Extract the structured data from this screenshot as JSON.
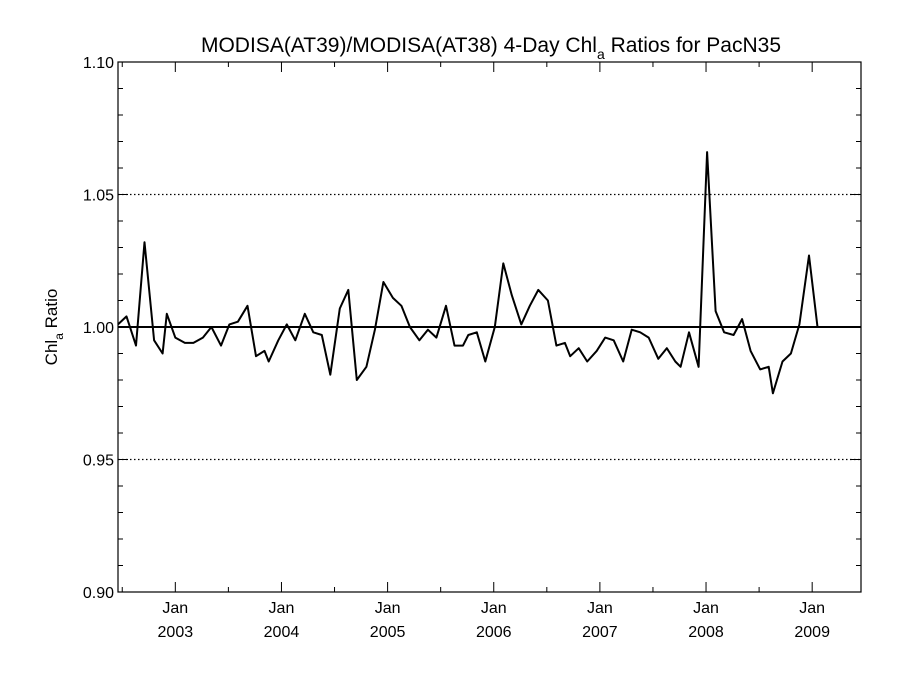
{
  "chart_data": {
    "type": "line",
    "title": "MODISA(AT39)/MODISA(AT38) 4-Day Chl",
    "title_sub": "a",
    "title_rest": " Ratios for PacN35",
    "ylabel_main": "Chl",
    "ylabel_sub": "a",
    "ylabel_rest": " Ratio",
    "ylim": [
      0.9,
      1.1
    ],
    "xlim": [
      2002.46,
      2009.46
    ],
    "y_ticks": [
      "0.90",
      "0.95",
      "1.00",
      "1.05",
      "1.10"
    ],
    "y_tick_values": [
      0.9,
      0.95,
      1.0,
      1.05,
      1.1
    ],
    "dotted_grid_values": [
      0.95,
      1.05
    ],
    "reference_line": 1.0,
    "x_ticks": [
      {
        "value": 2003.0,
        "month": "Jan",
        "year": "2003"
      },
      {
        "value": 2004.0,
        "month": "Jan",
        "year": "2004"
      },
      {
        "value": 2005.0,
        "month": "Jan",
        "year": "2005"
      },
      {
        "value": 2006.0,
        "month": "Jan",
        "year": "2006"
      },
      {
        "value": 2007.0,
        "month": "Jan",
        "year": "2007"
      },
      {
        "value": 2008.0,
        "month": "Jan",
        "year": "2008"
      },
      {
        "value": 2009.0,
        "month": "Jan",
        "year": "2009"
      }
    ],
    "series": [
      {
        "color": "#000000",
        "points": [
          [
            2002.46,
            1.001
          ],
          [
            2002.54,
            1.004
          ],
          [
            2002.63,
            0.993
          ],
          [
            2002.71,
            1.032
          ],
          [
            2002.8,
            0.995
          ],
          [
            2002.88,
            0.99
          ],
          [
            2002.92,
            1.005
          ],
          [
            2003.0,
            0.996
          ],
          [
            2003.09,
            0.994
          ],
          [
            2003.17,
            0.994
          ],
          [
            2003.26,
            0.996
          ],
          [
            2003.34,
            1.0
          ],
          [
            2003.43,
            0.993
          ],
          [
            2003.51,
            1.001
          ],
          [
            2003.59,
            1.002
          ],
          [
            2003.68,
            1.008
          ],
          [
            2003.76,
            0.989
          ],
          [
            2003.84,
            0.991
          ],
          [
            2003.88,
            0.987
          ],
          [
            2003.97,
            0.995
          ],
          [
            2004.05,
            1.001
          ],
          [
            2004.13,
            0.995
          ],
          [
            2004.22,
            1.005
          ],
          [
            2004.3,
            0.998
          ],
          [
            2004.38,
            0.997
          ],
          [
            2004.46,
            0.982
          ],
          [
            2004.55,
            1.007
          ],
          [
            2004.63,
            1.014
          ],
          [
            2004.71,
            0.98
          ],
          [
            2004.8,
            0.985
          ],
          [
            2004.88,
            0.999
          ],
          [
            2004.96,
            1.017
          ],
          [
            2005.05,
            1.011
          ],
          [
            2005.13,
            1.008
          ],
          [
            2005.21,
            1.0
          ],
          [
            2005.3,
            0.995
          ],
          [
            2005.38,
            0.999
          ],
          [
            2005.46,
            0.996
          ],
          [
            2005.55,
            1.008
          ],
          [
            2005.63,
            0.993
          ],
          [
            2005.71,
            0.993
          ],
          [
            2005.76,
            0.997
          ],
          [
            2005.84,
            0.998
          ],
          [
            2005.92,
            0.987
          ],
          [
            2006.01,
            1.0
          ],
          [
            2006.09,
            1.024
          ],
          [
            2006.17,
            1.012
          ],
          [
            2006.26,
            1.001
          ],
          [
            2006.34,
            1.008
          ],
          [
            2006.42,
            1.014
          ],
          [
            2006.51,
            1.01
          ],
          [
            2006.59,
            0.993
          ],
          [
            2006.67,
            0.994
          ],
          [
            2006.72,
            0.989
          ],
          [
            2006.8,
            0.992
          ],
          [
            2006.88,
            0.987
          ],
          [
            2006.97,
            0.991
          ],
          [
            2007.05,
            0.996
          ],
          [
            2007.13,
            0.995
          ],
          [
            2007.22,
            0.987
          ],
          [
            2007.3,
            0.999
          ],
          [
            2007.38,
            0.998
          ],
          [
            2007.46,
            0.996
          ],
          [
            2007.55,
            0.988
          ],
          [
            2007.63,
            0.992
          ],
          [
            2007.71,
            0.987
          ],
          [
            2007.76,
            0.985
          ],
          [
            2007.84,
            0.998
          ],
          [
            2007.93,
            0.985
          ],
          [
            2008.01,
            1.066
          ],
          [
            2008.09,
            1.006
          ],
          [
            2008.17,
            0.998
          ],
          [
            2008.26,
            0.997
          ],
          [
            2008.34,
            1.003
          ],
          [
            2008.42,
            0.991
          ],
          [
            2008.51,
            0.984
          ],
          [
            2008.59,
            0.985
          ],
          [
            2008.63,
            0.975
          ],
          [
            2008.72,
            0.987
          ],
          [
            2008.8,
            0.99
          ],
          [
            2008.88,
            1.001
          ],
          [
            2008.97,
            1.027
          ],
          [
            2009.05,
            1.0
          ]
        ]
      }
    ]
  }
}
